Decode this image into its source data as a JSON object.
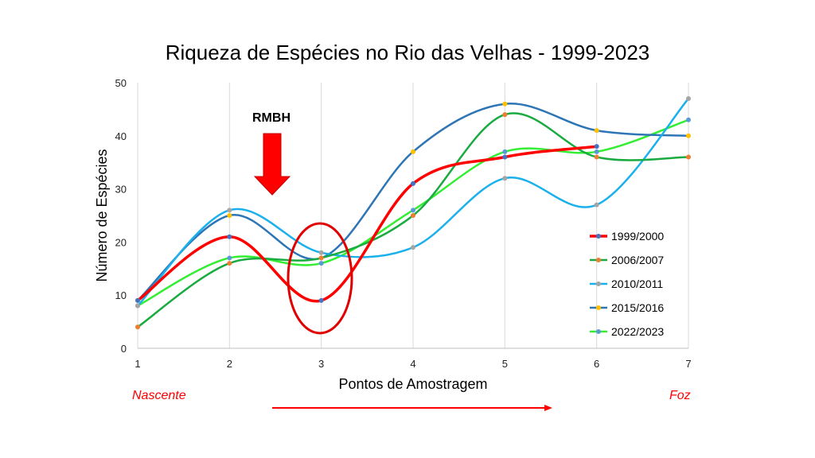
{
  "chart_data": {
    "type": "line",
    "title": "Riqueza de Espécies no Rio das Velhas - 1999-2023",
    "xlabel": "Pontos de Amostragem",
    "ylabel": "Número de Espécies",
    "x": [
      1,
      2,
      3,
      4,
      5,
      6,
      7
    ],
    "xlim": [
      1,
      7
    ],
    "ylim": [
      0,
      50
    ],
    "yticks": [
      0,
      10,
      20,
      30,
      40,
      50
    ],
    "grid": "vertical",
    "smooth": true,
    "legend_position": "bottom-right",
    "series": [
      {
        "name": "1999/2000",
        "color": "#ff0000",
        "point_color": "#4472c4",
        "values": [
          9,
          21,
          9,
          31,
          36,
          38,
          null
        ]
      },
      {
        "name": "2006/2007",
        "color": "#1aab40",
        "point_color": "#ed7d31",
        "values": [
          4,
          16,
          17,
          25,
          44,
          36,
          36
        ]
      },
      {
        "name": "2010/2011",
        "color": "#1ab0ec",
        "point_color": "#a5a5a5",
        "values": [
          8,
          26,
          18,
          19,
          32,
          27,
          47
        ]
      },
      {
        "name": "2015/2016",
        "color": "#2e75b6",
        "point_color": "#ffc000",
        "values": [
          9,
          25,
          17,
          37,
          46,
          41,
          40
        ]
      },
      {
        "name": "2022/2023",
        "color": "#33ee33",
        "point_color": "#5b9bd5",
        "values": [
          8,
          17,
          16,
          26,
          37,
          37,
          43
        ]
      }
    ],
    "annotations": {
      "rmbh_label": "RMBH",
      "source_label": "Nascente",
      "mouth_label": "Foz"
    }
  }
}
